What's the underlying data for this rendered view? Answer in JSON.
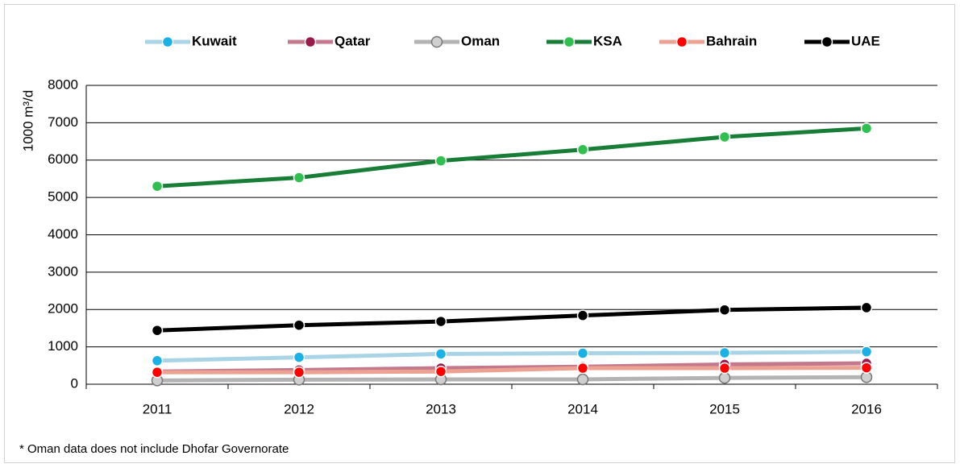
{
  "chart_data": {
    "type": "line",
    "y_label": "1000 m³/d",
    "footnote": "* Oman data does not include Dhofar Governorate",
    "categories": [
      "2011",
      "2012",
      "2013",
      "2014",
      "2015",
      "2016"
    ],
    "series": [
      {
        "name": "Kuwait",
        "color": "#a9d4e6",
        "marker_color": "#1ab2e6",
        "values": [
          630,
          720,
          810,
          830,
          840,
          870
        ]
      },
      {
        "name": "Qatar",
        "color": "#c4788c",
        "marker_color": "#9a1a4c",
        "values": [
          340,
          380,
          430,
          470,
          530,
          560
        ]
      },
      {
        "name": "Oman",
        "color": "#b3b3b3",
        "marker_color": "#cfcfcf",
        "values": [
          100,
          120,
          130,
          130,
          170,
          190
        ]
      },
      {
        "name": "KSA",
        "color": "#187d37",
        "marker_color": "#2fc050",
        "values": [
          5300,
          5530,
          5980,
          6280,
          6620,
          6850
        ]
      },
      {
        "name": "Bahrain",
        "color": "#eca292",
        "marker_color": "#ff0000",
        "values": [
          320,
          320,
          340,
          430,
          430,
          440
        ]
      },
      {
        "name": "UAE",
        "color": "#000000",
        "marker_color": "#000000",
        "values": [
          1440,
          1580,
          1680,
          1840,
          1990,
          2050
        ]
      }
    ],
    "ylim": [
      0,
      8000
    ],
    "yticks": [
      0,
      1000,
      2000,
      3000,
      4000,
      5000,
      6000,
      7000,
      8000
    ],
    "grid": true
  }
}
